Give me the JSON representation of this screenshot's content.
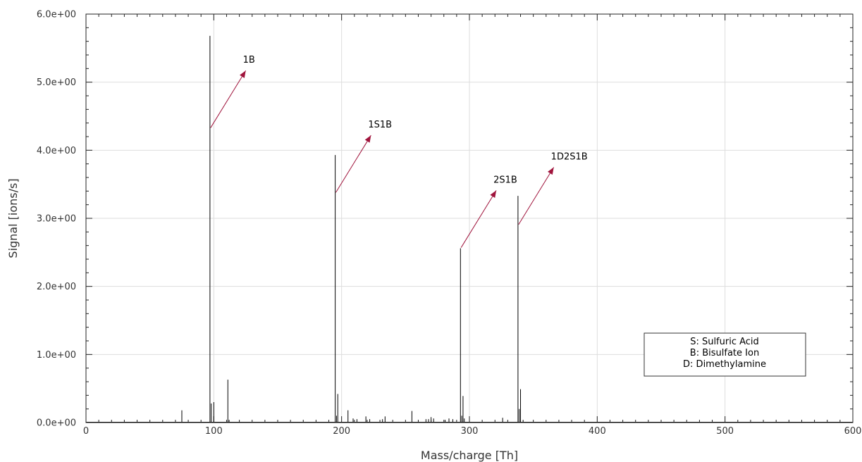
{
  "chart_data": {
    "type": "line",
    "xlabel": "Mass/charge [Th]",
    "ylabel": "Signal [ions/s]",
    "xlim": [
      0,
      600
    ],
    "ylim": [
      0,
      6
    ],
    "xticks": [
      0,
      100,
      200,
      300,
      400,
      500,
      600
    ],
    "xtick_labels": [
      "0",
      "100",
      "200",
      "300",
      "400",
      "500",
      "600"
    ],
    "yticks": [
      0,
      1,
      2,
      3,
      4,
      5,
      6
    ],
    "ytick_labels": [
      "0.0e+00",
      "1.0e+00",
      "2.0e+00",
      "3.0e+00",
      "4.0e+00",
      "5.0e+00",
      "6.0e+00"
    ],
    "grid": true,
    "series": [
      {
        "line_color": "#000000",
        "peaks": [
          {
            "x": 75,
            "y": 0.18
          },
          {
            "x": 97,
            "y": 5.68
          },
          {
            "x": 98,
            "y": 0.28
          },
          {
            "x": 100,
            "y": 0.3
          },
          {
            "x": 111,
            "y": 0.63
          },
          {
            "x": 112,
            "y": 0.04
          },
          {
            "x": 195,
            "y": 3.93
          },
          {
            "x": 196,
            "y": 0.1
          },
          {
            "x": 197,
            "y": 0.42
          },
          {
            "x": 205,
            "y": 0.18
          },
          {
            "x": 209,
            "y": 0.06
          },
          {
            "x": 212,
            "y": 0.05
          },
          {
            "x": 219,
            "y": 0.09
          },
          {
            "x": 222,
            "y": 0.05
          },
          {
            "x": 232,
            "y": 0.05
          },
          {
            "x": 234,
            "y": 0.09
          },
          {
            "x": 255,
            "y": 0.17
          },
          {
            "x": 266,
            "y": 0.05
          },
          {
            "x": 268,
            "y": 0.05
          },
          {
            "x": 270,
            "y": 0.08
          },
          {
            "x": 272,
            "y": 0.06
          },
          {
            "x": 281,
            "y": 0.04
          },
          {
            "x": 284,
            "y": 0.06
          },
          {
            "x": 287,
            "y": 0.05
          },
          {
            "x": 293,
            "y": 2.56
          },
          {
            "x": 294,
            "y": 0.1
          },
          {
            "x": 295,
            "y": 0.39
          },
          {
            "x": 296,
            "y": 0.06
          },
          {
            "x": 326,
            "y": 0.07
          },
          {
            "x": 338,
            "y": 3.33
          },
          {
            "x": 339,
            "y": 0.2
          },
          {
            "x": 340,
            "y": 0.49
          },
          {
            "x": 342,
            "y": 0.04
          }
        ]
      }
    ],
    "annotations": [
      {
        "label": "1B",
        "x0": 97.5,
        "y0": 4.33,
        "x1": 125,
        "y1": 5.17
      },
      {
        "label": "1S1B",
        "x0": 195.5,
        "y0": 3.38,
        "x1": 223,
        "y1": 4.22
      },
      {
        "label": "2S1B",
        "x0": 293.5,
        "y0": 2.57,
        "x1": 321,
        "y1": 3.41
      },
      {
        "label": "1D2S1B",
        "x0": 338.5,
        "y0": 2.91,
        "x1": 366,
        "y1": 3.75
      }
    ],
    "annotation_color": "#a0143c",
    "legend": {
      "placement": "lower-right",
      "lines": [
        "S: Sulfuric Acid",
        "B: Bisulfate Ion",
        "D: Dimethylamine"
      ]
    }
  }
}
